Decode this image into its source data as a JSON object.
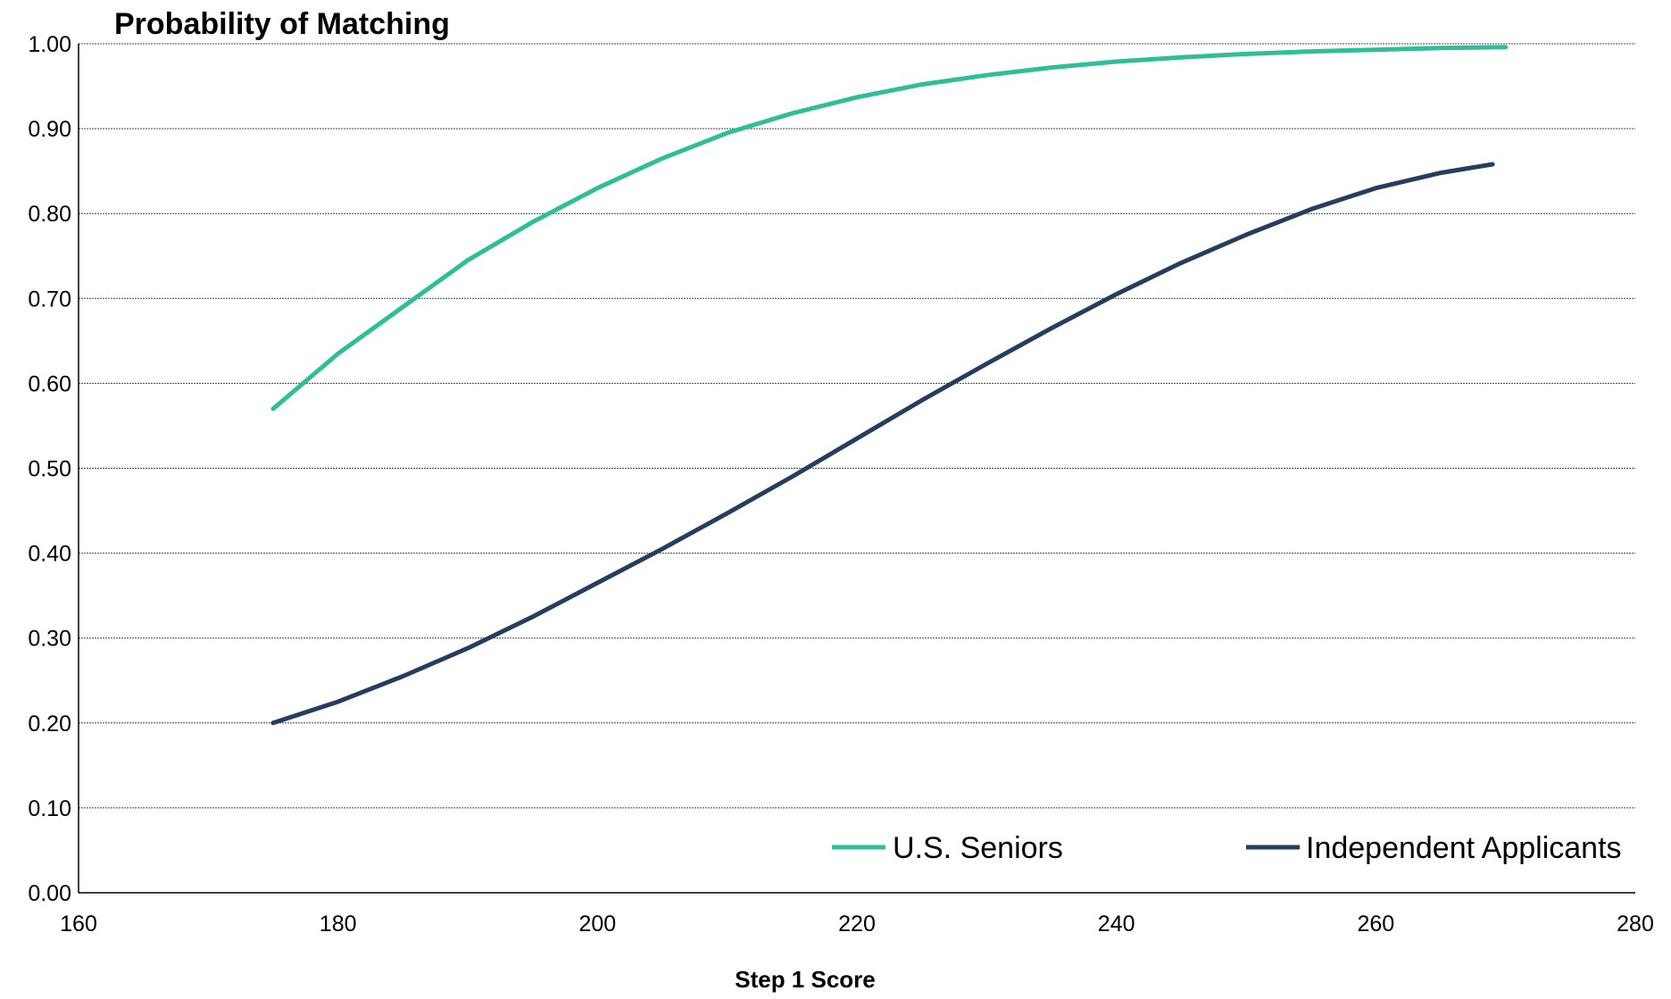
{
  "chart_data": {
    "type": "line",
    "title": "Probability of Matching",
    "xlabel": "Step 1 Score",
    "ylabel": "",
    "xlim": [
      160,
      280
    ],
    "ylim": [
      0,
      1
    ],
    "xticks": [
      "160",
      "180",
      "200",
      "220",
      "240",
      "260",
      "280"
    ],
    "yticks": [
      "0.00",
      "0.10",
      "0.20",
      "0.30",
      "0.40",
      "0.50",
      "0.60",
      "0.70",
      "0.80",
      "0.90",
      "1.00"
    ],
    "grid": true,
    "legend_position": "bottom-right",
    "series": [
      {
        "name": "U.S. Seniors",
        "color": "#2fbf97",
        "x": [
          175,
          180,
          185,
          190,
          195,
          200,
          205,
          210,
          215,
          220,
          225,
          230,
          235,
          240,
          245,
          250,
          255,
          260,
          265,
          270
        ],
        "y": [
          0.57,
          0.635,
          0.69,
          0.745,
          0.79,
          0.83,
          0.865,
          0.895,
          0.918,
          0.937,
          0.952,
          0.963,
          0.972,
          0.979,
          0.984,
          0.988,
          0.991,
          0.993,
          0.995,
          0.996
        ]
      },
      {
        "name": "Independent Applicants",
        "color": "#253d5e",
        "x": [
          175,
          180,
          185,
          190,
          195,
          200,
          205,
          210,
          215,
          220,
          225,
          230,
          235,
          240,
          245,
          250,
          255,
          260,
          265,
          269
        ],
        "y": [
          0.2,
          0.225,
          0.255,
          0.288,
          0.325,
          0.365,
          0.405,
          0.447,
          0.49,
          0.535,
          0.58,
          0.623,
          0.665,
          0.705,
          0.742,
          0.775,
          0.805,
          0.83,
          0.848,
          0.858
        ]
      }
    ]
  }
}
